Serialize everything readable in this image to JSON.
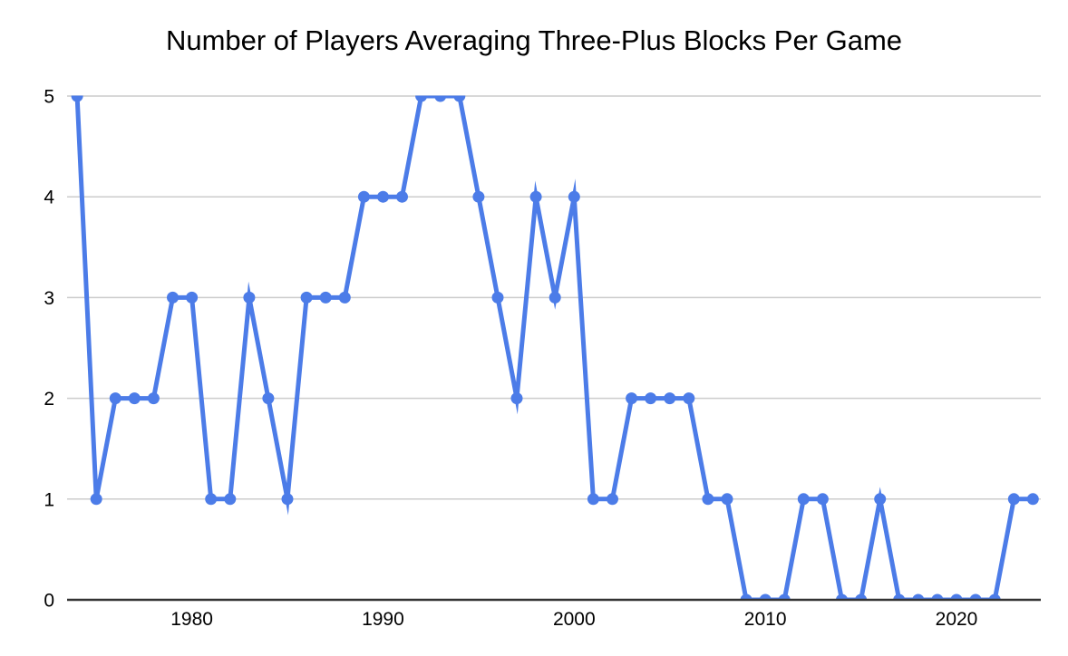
{
  "chart_data": {
    "type": "line",
    "title": "Number of Players Averaging Three-Plus Blocks Per Game",
    "x": [
      1974,
      1975,
      1976,
      1977,
      1978,
      1979,
      1980,
      1981,
      1982,
      1983,
      1984,
      1985,
      1986,
      1987,
      1988,
      1989,
      1990,
      1991,
      1992,
      1993,
      1994,
      1995,
      1996,
      1997,
      1998,
      1999,
      2000,
      2001,
      2002,
      2003,
      2004,
      2005,
      2006,
      2007,
      2008,
      2009,
      2010,
      2011,
      2012,
      2013,
      2014,
      2015,
      2016,
      2017,
      2018,
      2019,
      2020,
      2021,
      2022,
      2023,
      2024
    ],
    "values": [
      5,
      1,
      2,
      2,
      2,
      3,
      3,
      1,
      1,
      3,
      2,
      1,
      3,
      3,
      3,
      4,
      4,
      4,
      5,
      5,
      5,
      4,
      3,
      2,
      4,
      3,
      4,
      1,
      1,
      2,
      2,
      2,
      2,
      1,
      1,
      0,
      0,
      0,
      1,
      1,
      0,
      0,
      1,
      0,
      0,
      0,
      0,
      0,
      0,
      1,
      1
    ],
    "x_tick_labels": [
      "1980",
      "1990",
      "2000",
      "2010",
      "2020"
    ],
    "x_tick_years": [
      1980,
      1990,
      2000,
      2010,
      2020
    ],
    "y_tick_labels": [
      "0",
      "1",
      "2",
      "3",
      "4",
      "5"
    ],
    "y_tick_values": [
      0,
      1,
      2,
      3,
      4,
      5
    ],
    "ylim": [
      0,
      5
    ],
    "grid": "horizontal-only",
    "legend": "none",
    "marker": "circle",
    "colors": {
      "line": "#4c7ce8",
      "marker": "#4c7ce8",
      "gridline": "#cccccc",
      "axis_line": "#333333",
      "text": "#000000",
      "background": "#ffffff"
    }
  }
}
